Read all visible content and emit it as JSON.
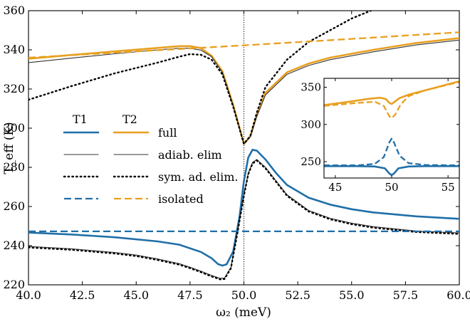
{
  "chart_data": [
    {
      "type": "line",
      "xlabel": "ω₂ (meV)",
      "ylabel": "T_eff (K)",
      "xlim": [
        40.0,
        60.0
      ],
      "ylim": [
        220,
        360
      ],
      "xticks": [
        "40.0",
        "42.5",
        "45.0",
        "47.5",
        "50.0",
        "52.5",
        "55.0",
        "57.5",
        "60.0"
      ],
      "yticks": [
        "220",
        "240",
        "260",
        "280",
        "300",
        "320",
        "340",
        "360"
      ],
      "vline_x": 50.0,
      "legend": {
        "placement": "center-left",
        "column_headers": [
          "T1",
          "T2"
        ],
        "row_labels": [
          "full",
          "adiab. elim",
          "sym. ad. elim.",
          "isolated"
        ]
      },
      "colors": {
        "T1": "#1f6fa8",
        "T2": "#e8a020",
        "adiab": "#333333",
        "sym": "#000000"
      },
      "series": [
        {
          "name": "T2 full",
          "style": "solid",
          "color": "#e8a020",
          "points": [
            [
              40,
              335.5
            ],
            [
              42,
              337.4
            ],
            [
              44,
              339.2
            ],
            [
              46,
              341.0
            ],
            [
              47,
              341.9
            ],
            [
              47.5,
              341.9
            ],
            [
              48,
              340.9
            ],
            [
              48.5,
              337
            ],
            [
              49,
              329
            ],
            [
              49.5,
              312
            ],
            [
              50,
              292
            ],
            [
              50.3,
              296
            ],
            [
              50.6,
              307
            ],
            [
              51,
              318
            ],
            [
              52,
              328.5
            ],
            [
              53,
              333
            ],
            [
              54,
              336
            ],
            [
              56,
              340
            ],
            [
              58,
              343.5
            ],
            [
              60,
              346
            ]
          ]
        },
        {
          "name": "T2 adiab. elim",
          "style": "solid-thin",
          "color": "#333333",
          "points": [
            [
              40,
              333.5
            ],
            [
              42,
              335.8
            ],
            [
              44,
              338
            ],
            [
              46,
              340
            ],
            [
              47,
              340.8
            ],
            [
              47.5,
              340.8
            ],
            [
              48,
              339.9
            ],
            [
              48.5,
              336.5
            ],
            [
              49,
              328.5
            ],
            [
              49.5,
              311.5
            ],
            [
              50,
              292
            ],
            [
              50.3,
              295.5
            ],
            [
              50.6,
              306
            ],
            [
              51,
              317
            ],
            [
              52,
              327.5
            ],
            [
              53,
              332
            ],
            [
              54,
              335
            ],
            [
              56,
              339
            ],
            [
              58,
              342.5
            ],
            [
              60,
              345
            ]
          ]
        },
        {
          "name": "T2 sym. ad. elim.",
          "style": "dotted",
          "color": "#000000",
          "points": [
            [
              40,
              314.5
            ],
            [
              42,
              321.5
            ],
            [
              44,
              328
            ],
            [
              46,
              333.5
            ],
            [
              47,
              336.5
            ],
            [
              47.5,
              337.8
            ],
            [
              48,
              337.5
            ],
            [
              48.5,
              335
            ],
            [
              49,
              327.5
            ],
            [
              49.5,
              311
            ],
            [
              50,
              292
            ],
            [
              50.3,
              296
            ],
            [
              50.6,
              308
            ],
            [
              51,
              321
            ],
            [
              52,
              335
            ],
            [
              53,
              344
            ],
            [
              54,
              350
            ],
            [
              55,
              356
            ],
            [
              56,
              360.5
            ]
          ]
        },
        {
          "name": "T2 isolated",
          "style": "dashed",
          "color": "#e8a020",
          "points": [
            [
              40,
              336
            ],
            [
              45,
              339.2
            ],
            [
              50,
              342.3
            ],
            [
              55,
              345.6
            ],
            [
              60,
              349
            ]
          ]
        },
        {
          "name": "T1 full",
          "style": "solid",
          "color": "#1f6fa8",
          "points": [
            [
              40,
              246.7
            ],
            [
              42,
              245.7
            ],
            [
              44,
              244.3
            ],
            [
              46,
              242.2
            ],
            [
              47,
              240.5
            ],
            [
              48,
              236.8
            ],
            [
              48.5,
              233.6
            ],
            [
              48.8,
              230.6
            ],
            [
              49,
              229.8
            ],
            [
              49.2,
              230.5
            ],
            [
              49.5,
              237
            ],
            [
              49.8,
              255
            ],
            [
              50,
              273
            ],
            [
              50.2,
              285
            ],
            [
              50.4,
              289
            ],
            [
              50.6,
              288.5
            ],
            [
              51,
              284
            ],
            [
              51.5,
              277
            ],
            [
              52,
              271
            ],
            [
              53,
              264.5
            ],
            [
              54,
              261
            ],
            [
              55,
              258.6
            ],
            [
              56,
              257
            ],
            [
              58,
              255
            ],
            [
              60,
              253.7
            ]
          ]
        },
        {
          "name": "T1 adiab. elim",
          "style": "solid-thin",
          "color": "#333333",
          "points": [
            [
              40,
              239.6
            ],
            [
              42,
              238.4
            ],
            [
              44,
              236.5
            ],
            [
              45,
              235.2
            ],
            [
              46,
              233.2
            ],
            [
              47,
              230.8
            ],
            [
              47.5,
              229
            ],
            [
              48,
              227
            ],
            [
              48.5,
              224.8
            ],
            [
              48.9,
              223.3
            ],
            [
              49.1,
              223.5
            ],
            [
              49.4,
              229
            ],
            [
              49.7,
              247
            ],
            [
              50,
              266
            ],
            [
              50.2,
              277
            ],
            [
              50.4,
              282.5
            ],
            [
              50.6,
              284
            ],
            [
              51,
              280
            ],
            [
              51.5,
              273
            ],
            [
              52,
              266
            ],
            [
              53,
              258
            ],
            [
              54,
              254
            ],
            [
              55,
              251.5
            ],
            [
              56,
              249.7
            ],
            [
              58,
              247.5
            ],
            [
              60,
              246.5
            ]
          ]
        },
        {
          "name": "T1 sym. ad. elim.",
          "style": "dotted",
          "color": "#000000",
          "points": [
            [
              40,
              239.1
            ],
            [
              42,
              237.9
            ],
            [
              44,
              236
            ],
            [
              45,
              234.7
            ],
            [
              46,
              232.7
            ],
            [
              47,
              230.3
            ],
            [
              47.5,
              228.5
            ],
            [
              48,
              226.5
            ],
            [
              48.5,
              224.3
            ],
            [
              48.9,
              222.8
            ],
            [
              49.1,
              223
            ],
            [
              49.4,
              228.5
            ],
            [
              49.7,
              246.5
            ],
            [
              50,
              265.5
            ],
            [
              50.2,
              276.5
            ],
            [
              50.4,
              282
            ],
            [
              50.6,
              283.5
            ],
            [
              51,
              279.5
            ],
            [
              51.5,
              272.5
            ],
            [
              52,
              265.5
            ],
            [
              53,
              257.5
            ],
            [
              54,
              253.5
            ],
            [
              55,
              251
            ],
            [
              56,
              249.2
            ],
            [
              58,
              247
            ],
            [
              60,
              246
            ]
          ]
        },
        {
          "name": "T1 isolated",
          "style": "dashed",
          "color": "#1f6fa8",
          "points": [
            [
              40,
              247.3
            ],
            [
              60,
              247.3
            ]
          ]
        }
      ]
    },
    {
      "type": "line",
      "placement": "inset-right",
      "xlim": [
        44,
        56
      ],
      "ylim": [
        228,
        362
      ],
      "xticks": [
        "45",
        "50",
        "55"
      ],
      "yticks": [
        "250",
        "300",
        "350"
      ],
      "series": [
        {
          "name": "T2 full",
          "style": "solid",
          "color": "#e8a020",
          "points": [
            [
              44,
              326
            ],
            [
              46,
              330
            ],
            [
              48,
              334.5
            ],
            [
              49,
              336
            ],
            [
              49.5,
              334
            ],
            [
              49.8,
              329
            ],
            [
              50,
              327.5
            ],
            [
              50.3,
              331
            ],
            [
              50.7,
              335.5
            ],
            [
              51.5,
              340
            ],
            [
              53,
              346
            ],
            [
              56,
              358
            ]
          ]
        },
        {
          "name": "T2 isolated",
          "style": "dashed",
          "color": "#e8a020",
          "points": [
            [
              44,
              325
            ],
            [
              47,
              329
            ],
            [
              48.5,
              330.5
            ],
            [
              49.3,
              325
            ],
            [
              49.8,
              311
            ],
            [
              50,
              308.5
            ],
            [
              50.3,
              313
            ],
            [
              50.8,
              327
            ],
            [
              51.5,
              338
            ],
            [
              53,
              346
            ],
            [
              56,
              357
            ]
          ]
        },
        {
          "name": "T1 full",
          "style": "solid",
          "color": "#1f6fa8",
          "points": [
            [
              44,
              244
            ],
            [
              47,
              244
            ],
            [
              48.5,
              243.5
            ],
            [
              49.4,
              241
            ],
            [
              49.8,
              234
            ],
            [
              50,
              232
            ],
            [
              50.2,
              234
            ],
            [
              50.6,
              241
            ],
            [
              51.5,
              243.5
            ],
            [
              53,
              244
            ],
            [
              56,
              244
            ]
          ]
        },
        {
          "name": "T1 isolated",
          "style": "dashed",
          "color": "#1f6fa8",
          "points": [
            [
              44,
              245
            ],
            [
              47,
              245
            ],
            [
              48.5,
              247
            ],
            [
              49.3,
              256
            ],
            [
              49.8,
              276
            ],
            [
              50,
              281
            ],
            [
              50.2,
              276
            ],
            [
              50.7,
              258
            ],
            [
              51.5,
              248
            ],
            [
              53,
              245.5
            ],
            [
              56,
              245
            ]
          ]
        }
      ]
    }
  ]
}
